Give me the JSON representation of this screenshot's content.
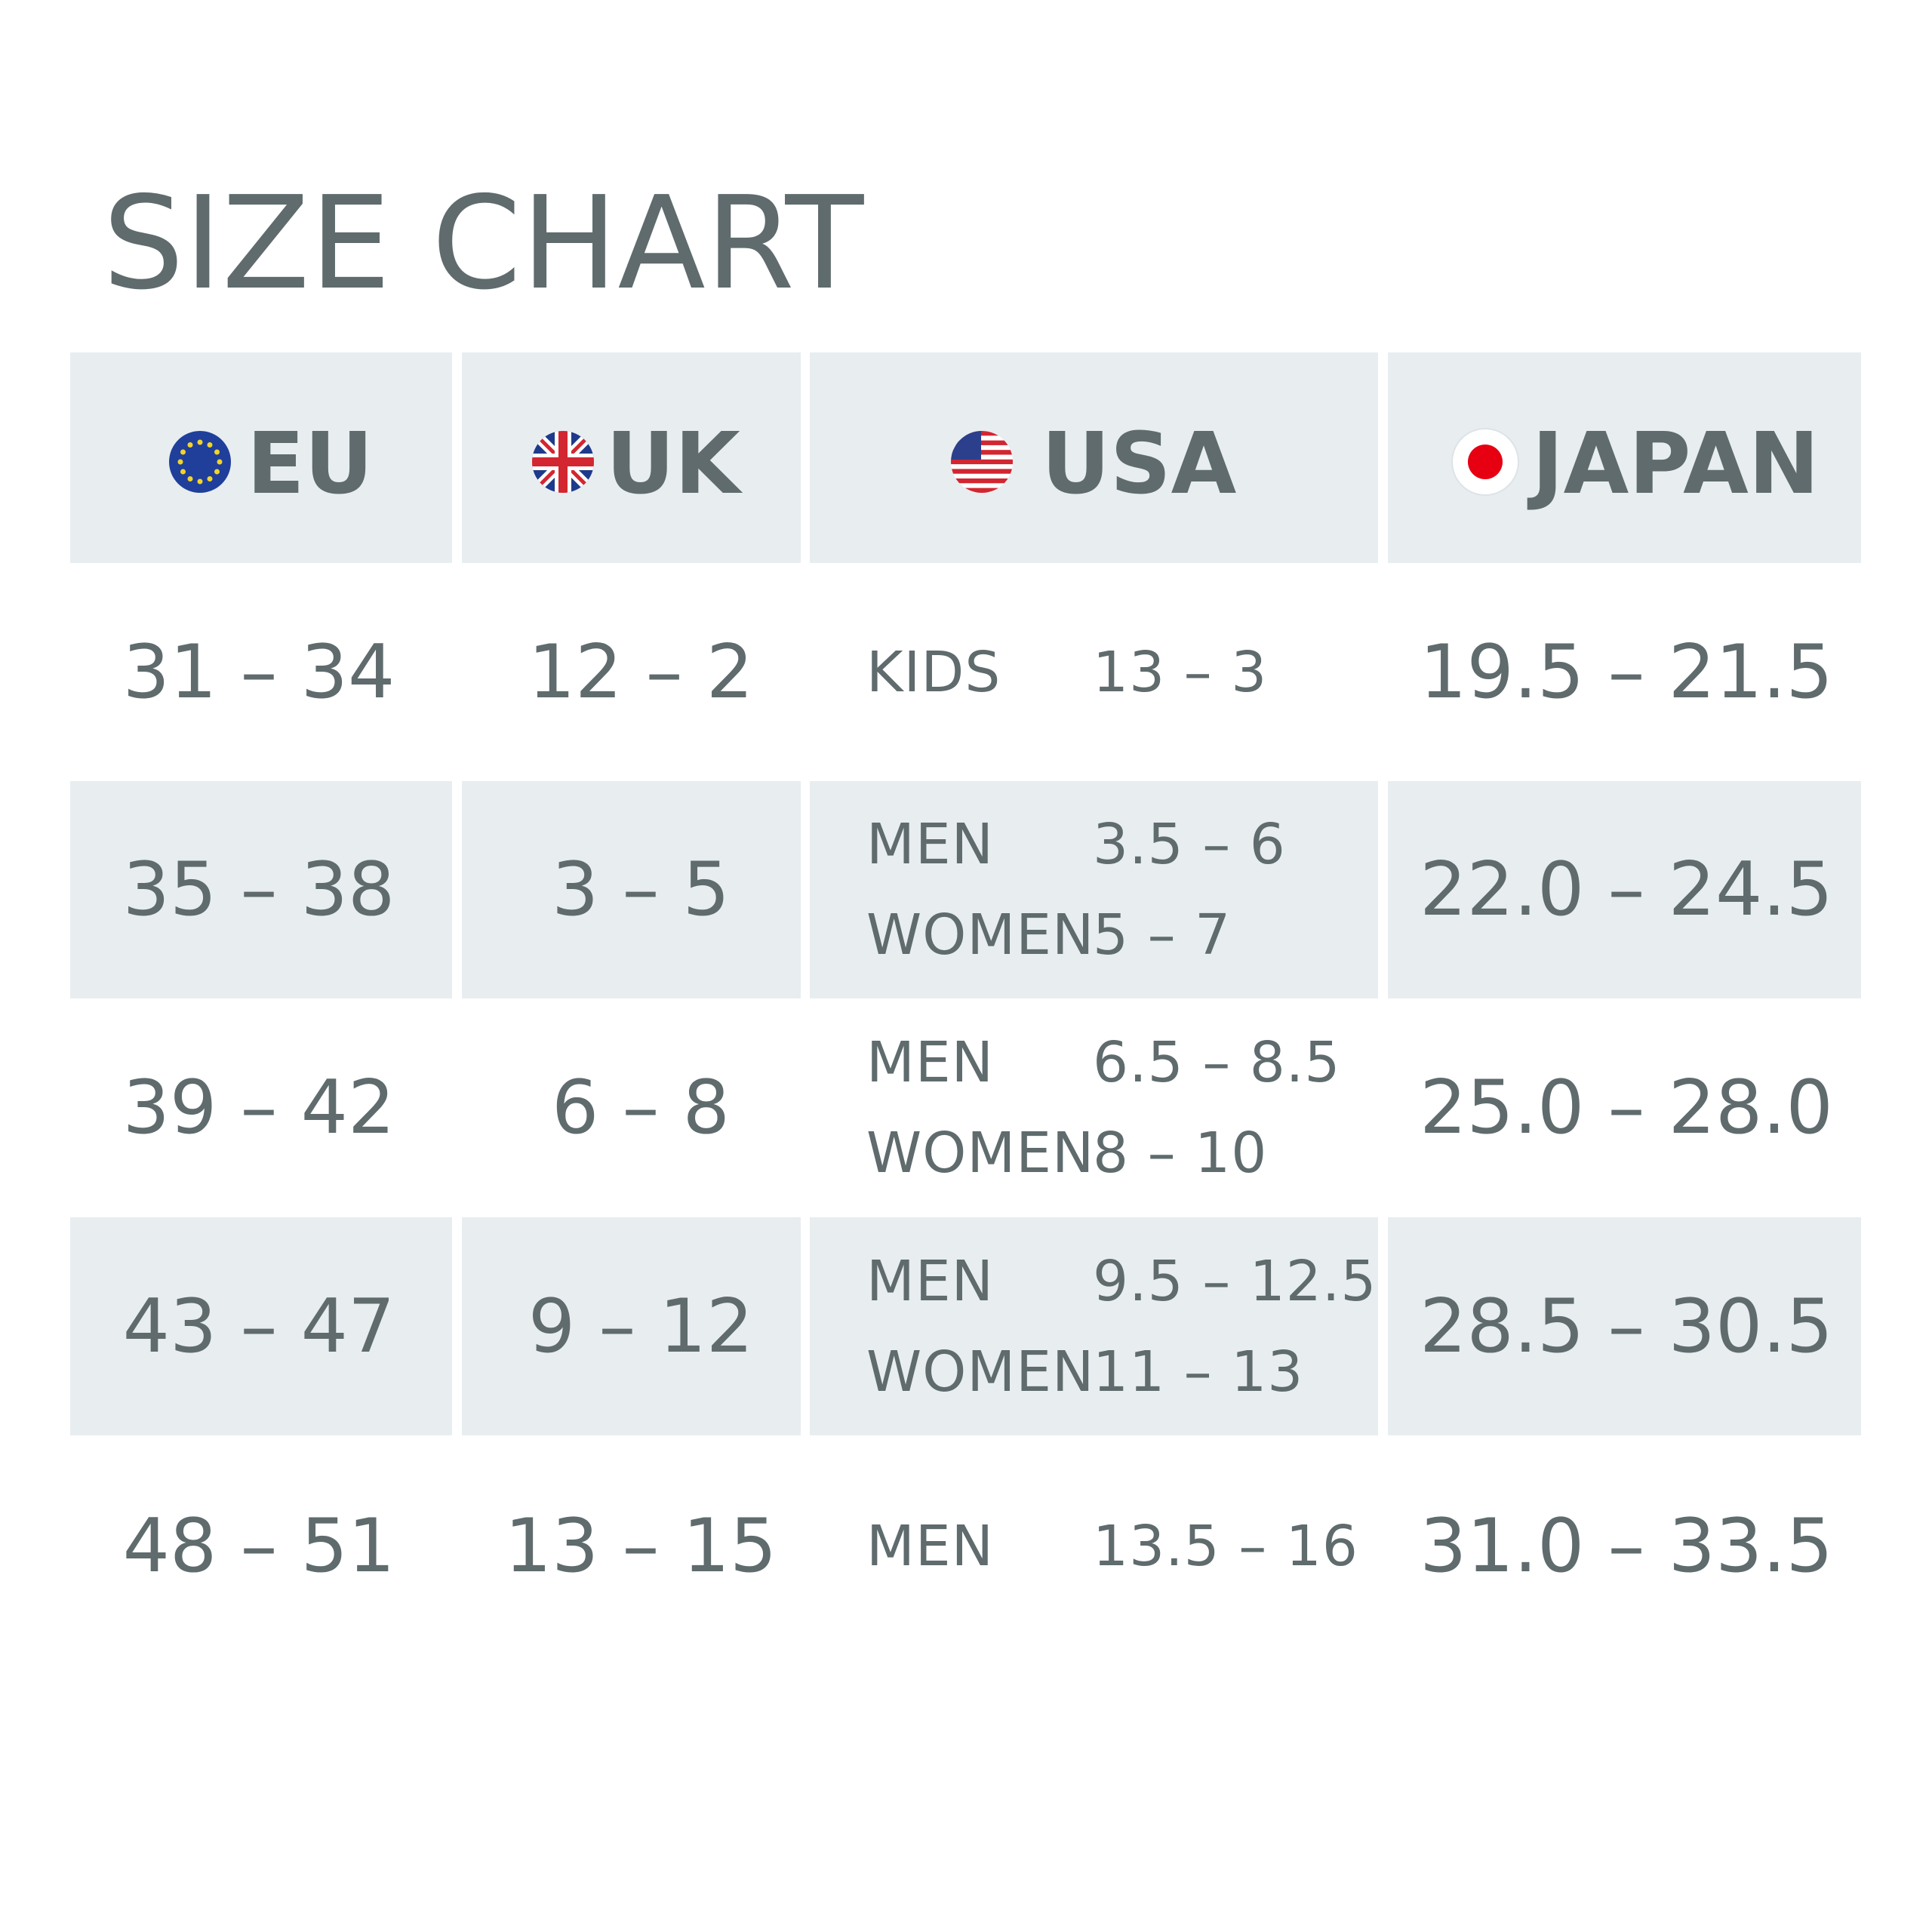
{
  "header": {
    "title": "SIZE CHART"
  },
  "table": {
    "columns": [
      "EU",
      "UK",
      "USA",
      "JAPAN"
    ],
    "rows": [
      {
        "eu": "31 – 34",
        "uk": "12 – 2",
        "usa": [
          {
            "group": "KIDS",
            "size": "13 – 3"
          }
        ],
        "japan": "19.5 – 21.5"
      },
      {
        "eu": "35 – 38",
        "uk": "3 – 5",
        "usa": [
          {
            "group": "MEN",
            "size": "3.5 – 6"
          },
          {
            "group": "WOMEN",
            "size": "5 – 7"
          }
        ],
        "japan": "22.0 – 24.5"
      },
      {
        "eu": "39 – 42",
        "uk": "6 – 8",
        "usa": [
          {
            "group": "MEN",
            "size": "6.5 – 8.5"
          },
          {
            "group": "WOMEN",
            "size": "8 – 10"
          }
        ],
        "japan": "25.0 – 28.0"
      },
      {
        "eu": "43 – 47",
        "uk": "9 – 12",
        "usa": [
          {
            "group": "MEN",
            "size": "9.5 – 12.5"
          },
          {
            "group": "WOMEN",
            "size": "11 – 13"
          }
        ],
        "japan": "28.5 – 30.5"
      },
      {
        "eu": "48 – 51",
        "uk": "13 – 15",
        "usa": [
          {
            "group": "MEN",
            "size": "13.5 – 16"
          }
        ],
        "japan": "31.0 – 33.5"
      }
    ]
  }
}
